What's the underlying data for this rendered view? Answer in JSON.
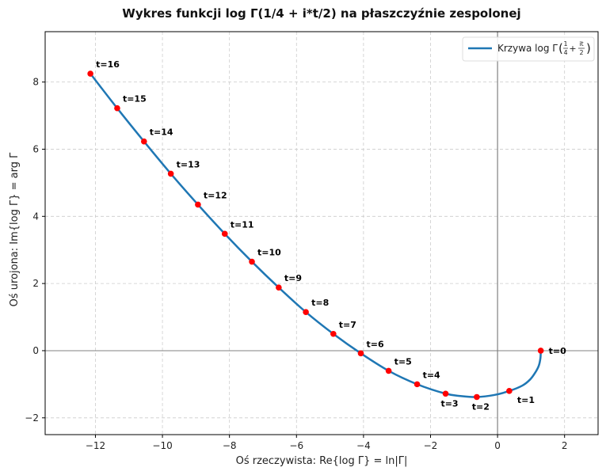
{
  "chart_data": {
    "type": "line",
    "title": "Wykres funkcji log Γ(1/4 + i*t/2) na płaszczyźnie zespolonej",
    "xlabel": "Oś rzeczywista: Re{log Γ} = ln|Γ|",
    "ylabel": "Oś urojona: Im{log Γ} = arg Γ",
    "xlim": [
      -13.5,
      3.0
    ],
    "ylim": [
      -2.5,
      9.5
    ],
    "xticks": [
      -12,
      -10,
      -8,
      -6,
      -4,
      -2,
      0,
      2
    ],
    "yticks": [
      -2,
      0,
      2,
      4,
      6,
      8
    ],
    "xtick_labels": [
      "−12",
      "−10",
      "−8",
      "−6",
      "−4",
      "−2",
      "0",
      "2"
    ],
    "ytick_labels": [
      "−2",
      "0",
      "2",
      "4",
      "6",
      "8"
    ],
    "grid": true,
    "legend_position": "top-right",
    "colors": {
      "curve": "#1f77b4",
      "points": "#ff0000",
      "ref_lines": "#808080"
    },
    "series": [
      {
        "name": "Krzywa log Γ(1/4 + it/2)",
        "legend_main": "Krzywa log Γ",
        "legend_frac1_num": "1",
        "legend_frac1_den": "4",
        "legend_plus": "+",
        "legend_frac2_num": "it",
        "legend_frac2_den": "2",
        "curve": [
          [
            1.29,
            0.0
          ],
          [
            1.28,
            -0.22
          ],
          [
            1.23,
            -0.45
          ],
          [
            1.12,
            -0.66
          ],
          [
            0.97,
            -0.86
          ],
          [
            0.74,
            -1.04
          ],
          [
            0.35,
            -1.2
          ],
          [
            -0.1,
            -1.32
          ],
          [
            -0.62,
            -1.38
          ],
          [
            -1.1,
            -1.35
          ],
          [
            -1.55,
            -1.28
          ],
          [
            -2.4,
            -1.0
          ],
          [
            -3.25,
            -0.6
          ],
          [
            -4.08,
            -0.08
          ],
          [
            -4.9,
            0.5
          ],
          [
            -5.72,
            1.15
          ],
          [
            -6.53,
            1.88
          ],
          [
            -7.33,
            2.65
          ],
          [
            -8.14,
            3.48
          ],
          [
            -8.94,
            4.35
          ],
          [
            -9.75,
            5.27
          ],
          [
            -10.55,
            6.23
          ],
          [
            -11.35,
            7.22
          ],
          [
            -12.15,
            8.25
          ]
        ]
      }
    ],
    "points": [
      {
        "t": 0,
        "x": 1.29,
        "y": 0.0,
        "label": "t=0"
      },
      {
        "t": 1,
        "x": 0.35,
        "y": -1.2,
        "label": "t=1"
      },
      {
        "t": 2,
        "x": -0.62,
        "y": -1.38,
        "label": "t=2"
      },
      {
        "t": 3,
        "x": -1.55,
        "y": -1.28,
        "label": "t=3"
      },
      {
        "t": 4,
        "x": -2.4,
        "y": -1.0,
        "label": "t=4"
      },
      {
        "t": 5,
        "x": -3.25,
        "y": -0.6,
        "label": "t=5"
      },
      {
        "t": 6,
        "x": -4.08,
        "y": -0.08,
        "label": "t=6"
      },
      {
        "t": 7,
        "x": -4.9,
        "y": 0.5,
        "label": "t=7"
      },
      {
        "t": 8,
        "x": -5.72,
        "y": 1.15,
        "label": "t=8"
      },
      {
        "t": 9,
        "x": -6.53,
        "y": 1.88,
        "label": "t=9"
      },
      {
        "t": 10,
        "x": -7.33,
        "y": 2.65,
        "label": "t=10"
      },
      {
        "t": 11,
        "x": -8.14,
        "y": 3.48,
        "label": "t=11"
      },
      {
        "t": 12,
        "x": -8.94,
        "y": 4.35,
        "label": "t=12"
      },
      {
        "t": 13,
        "x": -9.75,
        "y": 5.27,
        "label": "t=13"
      },
      {
        "t": 14,
        "x": -10.55,
        "y": 6.23,
        "label": "t=14"
      },
      {
        "t": 15,
        "x": -11.35,
        "y": 7.22,
        "label": "t=15"
      },
      {
        "t": 16,
        "x": -12.15,
        "y": 8.25,
        "label": "t=16"
      }
    ]
  }
}
